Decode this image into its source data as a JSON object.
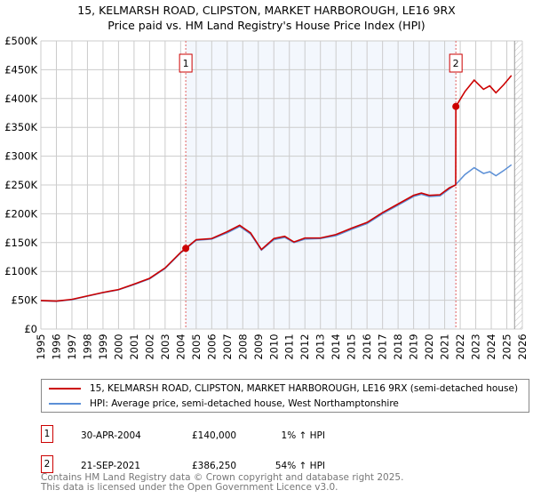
{
  "title": "15, KELMARSH ROAD, CLIPSTON, MARKET HARBOROUGH, LE16 9RX",
  "subtitle": "Price paid vs. HM Land Registry's House Price Index (HPI)",
  "chart_data": {
    "type": "line",
    "ylim": [
      0,
      500000
    ],
    "xlim": [
      1995,
      2026
    ],
    "yticks": [
      "£0",
      "£50K",
      "£100K",
      "£150K",
      "£200K",
      "£250K",
      "£300K",
      "£350K",
      "£400K",
      "£450K",
      "£500K"
    ],
    "xticks": [
      "1995",
      "1996",
      "1997",
      "1998",
      "1999",
      "2000",
      "2001",
      "2002",
      "2003",
      "2004",
      "2005",
      "2006",
      "2007",
      "2008",
      "2009",
      "2010",
      "2011",
      "2012",
      "2013",
      "2014",
      "2015",
      "2016",
      "2017",
      "2018",
      "2019",
      "2020",
      "2021",
      "2022",
      "2023",
      "2024",
      "2025",
      "2026"
    ],
    "hpi": {
      "name": "HPI: Average price, semi-detached house, West Northamptonshire",
      "color": "#5b8fd6",
      "x": [
        1995,
        1996,
        1997,
        1998,
        1999,
        2000,
        2001,
        2002,
        2003,
        2004,
        2004.33,
        2005,
        2006,
        2007,
        2007.8,
        2008.5,
        2009.2,
        2010,
        2010.7,
        2011.3,
        2012,
        2013,
        2014,
        2015,
        2016,
        2017,
        2018,
        2019,
        2019.5,
        2020,
        2020.7,
        2021.3,
        2021.72,
        2022.3,
        2022.9,
        2023.5,
        2023.9,
        2024.3,
        2024.8,
        2025.3
      ],
      "y": [
        49000,
        48000,
        51000,
        57000,
        63000,
        68000,
        77000,
        87000,
        105000,
        132000,
        139000,
        154000,
        156000,
        167000,
        178000,
        165000,
        137000,
        155000,
        159000,
        150000,
        156000,
        157000,
        162000,
        173000,
        183000,
        200000,
        215000,
        230000,
        234000,
        230000,
        231000,
        243000,
        251000,
        268000,
        280000,
        270000,
        273000,
        266000,
        275000,
        285000
      ]
    },
    "property": {
      "name": "15, KELMARSH ROAD, CLIPSTON, MARKET HARBOROUGH, LE16 9RX (semi-detached house)",
      "color": "#cc0000",
      "x": [
        1995,
        1996,
        1997,
        1998,
        1999,
        2000,
        2001,
        2002,
        2003,
        2004,
        2004.33,
        2005,
        2006,
        2007,
        2007.8,
        2008.5,
        2009.2,
        2010,
        2010.7,
        2011.3,
        2012,
        2013,
        2014,
        2015,
        2016,
        2017,
        2018,
        2019,
        2019.5,
        2020,
        2020.7,
        2021.3,
        2021.71,
        2021.72,
        2022.3,
        2022.9,
        2023.5,
        2023.9,
        2024.3,
        2024.8,
        2025.3
      ],
      "y": [
        49500,
        48500,
        51500,
        57500,
        63500,
        68500,
        78000,
        88000,
        106000,
        133000,
        140000,
        155000,
        157000,
        169000,
        180000,
        167000,
        138000,
        157000,
        161000,
        151000,
        158000,
        158000,
        164000,
        175000,
        185000,
        202000,
        217000,
        232000,
        236000,
        232000,
        233000,
        245000,
        250000,
        386250,
        412000,
        432000,
        416000,
        422000,
        410000,
        424000,
        440000
      ]
    },
    "sales": [
      {
        "label": "1",
        "x": 2004.33,
        "y": 140000
      },
      {
        "label": "2",
        "x": 2021.72,
        "y": 386250
      }
    ],
    "shaded_range": [
      2004.33,
      2021.72
    ],
    "hatched_from": 2025.5
  },
  "legend": [
    "15, KELMARSH ROAD, CLIPSTON, MARKET HARBOROUGH, LE16 9RX (semi-detached house)",
    "HPI: Average price, semi-detached house, West Northamptonshire"
  ],
  "transactions": [
    {
      "num": "1",
      "date": "30-APR-2004",
      "price": "£140,000",
      "hpi": "1% ↑ HPI"
    },
    {
      "num": "2",
      "date": "21-SEP-2021",
      "price": "£386,250",
      "hpi": "54% ↑ HPI"
    }
  ],
  "footer": [
    "Contains HM Land Registry data © Crown copyright and database right 2025.",
    "This data is licensed under the Open Government Licence v3.0."
  ]
}
